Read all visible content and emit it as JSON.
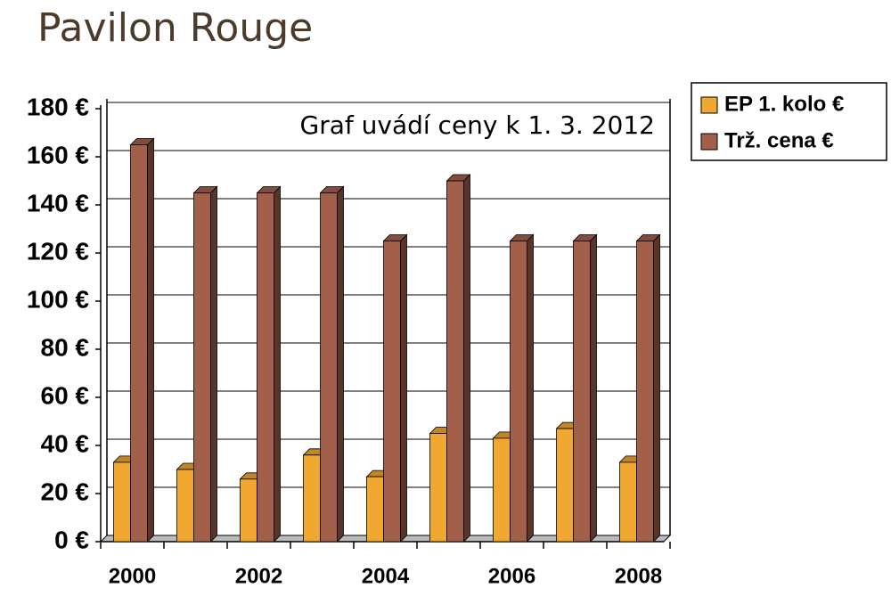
{
  "chart_data": {
    "type": "bar",
    "title": "Pavilon Rouge",
    "annotation": "Graf uvádí ceny k 1. 3. 2012",
    "categories": [
      "2000",
      null,
      "2002",
      null,
      "2004",
      null,
      "2006",
      null,
      "2008"
    ],
    "series": [
      {
        "name": "EP 1. kolo €",
        "color": "#f0a830",
        "values": [
          33,
          30,
          26,
          36,
          27,
          45,
          43,
          47,
          33
        ]
      },
      {
        "name": "Trž. cena €",
        "color": "#a2604b",
        "values": [
          165,
          145,
          145,
          145,
          125,
          150,
          125,
          125,
          125
        ]
      }
    ],
    "ylim": [
      0,
      180
    ],
    "yticks": [
      {
        "value": 0,
        "label": "0 €"
      },
      {
        "value": 20,
        "label": "20 €"
      },
      {
        "value": 40,
        "label": "40 €"
      },
      {
        "value": 60,
        "label": "60 €"
      },
      {
        "value": 80,
        "label": "80 €"
      },
      {
        "value": 100,
        "label": "100 €"
      },
      {
        "value": 120,
        "label": "120 €"
      },
      {
        "value": 140,
        "label": "140 €"
      },
      {
        "value": 160,
        "label": "160 €"
      },
      {
        "value": 180,
        "label": "180 €"
      }
    ],
    "grid": true,
    "legend": "right"
  }
}
